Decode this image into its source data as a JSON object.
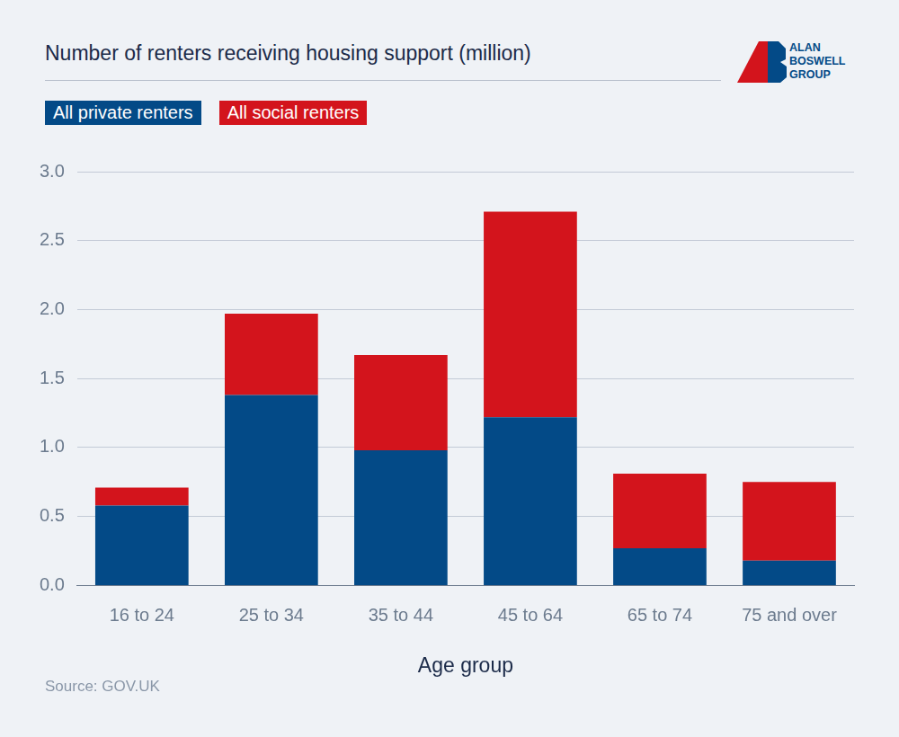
{
  "chart_data": {
    "type": "bar",
    "title": "Number of renters receiving housing support (million)",
    "logo_text": [
      "ALAN",
      "BOSWELL",
      "GROUP"
    ],
    "source": "Source: GOV.UK",
    "x_label": "Age group",
    "categories": [
      "16 to 24",
      "25 to 34",
      "35 to 44",
      "45 to 64",
      "65 to 74",
      "75 and over"
    ],
    "series": [
      {
        "name": "All private renters",
        "color": "#034a87",
        "values": [
          0.58,
          1.38,
          0.98,
          1.22,
          0.27,
          0.18
        ]
      },
      {
        "name": "All social renters",
        "color": "#d3141c",
        "values": [
          0.13,
          0.59,
          0.69,
          1.49,
          0.54,
          0.57
        ]
      }
    ],
    "stacked": true,
    "ylim": [
      0,
      3
    ],
    "yticks": [
      {
        "value": 0,
        "label": "0.0"
      },
      0.5,
      {
        "value": 1,
        "label": "1.0"
      },
      1.5,
      {
        "value": 2,
        "label": "2.0"
      },
      2.5,
      {
        "value": 3,
        "label": "3.0"
      }
    ],
    "grid": true,
    "legend": "top-left"
  }
}
